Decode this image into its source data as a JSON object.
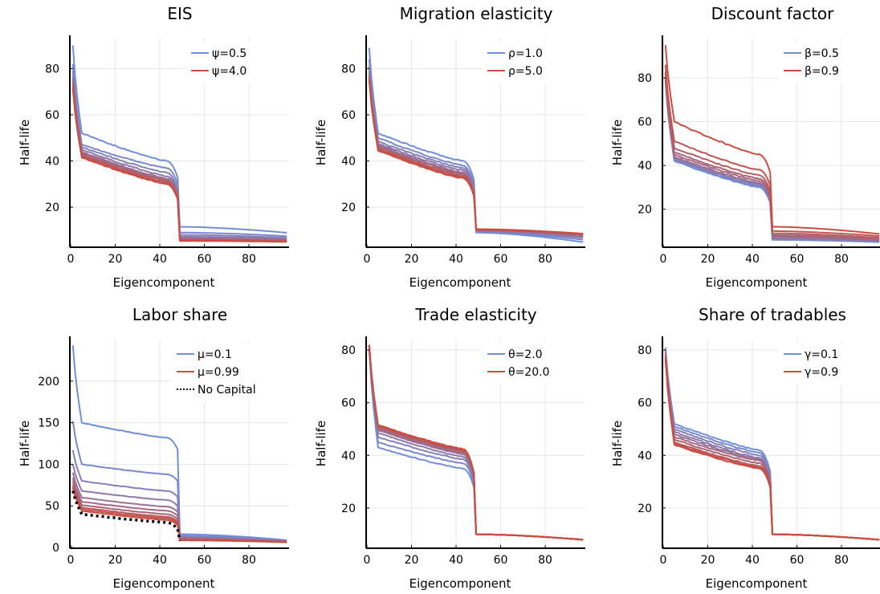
{
  "colors": {
    "low": "#6f8fdc",
    "high": "#cc4d3f",
    "nocap": "#000000",
    "grid": "#e6e6e6",
    "axis": "#000000"
  },
  "chart_data": [
    {
      "type": "line",
      "title": "EIS",
      "xlabel": "Eigencomponent",
      "ylabel": "Half-life",
      "xlim": [
        0,
        98
      ],
      "ylim": [
        3,
        93
      ],
      "xticks": [
        0,
        20,
        40,
        60,
        80
      ],
      "yticks": [
        20,
        40,
        60,
        80
      ],
      "grid": true,
      "legend_position": "top-right",
      "legend": [
        {
          "label": "ψ=0.5",
          "style": "low"
        },
        {
          "label": "ψ=4.0",
          "style": "high"
        }
      ],
      "curves": [
        {
          "start": 90,
          "kink": 52,
          "t1": 40,
          "t2": 33,
          "tail1": 11.5,
          "tail2": 9.0,
          "shape": 1.2
        },
        {
          "start": 82,
          "kink": 47,
          "t1": 37,
          "t2": 30,
          "tail1": 9.0,
          "tail2": 7.5,
          "shape": 1.2
        },
        {
          "start": 79,
          "kink": 46,
          "t1": 35,
          "t2": 28,
          "tail1": 8.0,
          "tail2": 6.8,
          "shape": 1.2
        },
        {
          "start": 77,
          "kink": 45,
          "t1": 33.5,
          "t2": 27,
          "tail1": 7.2,
          "tail2": 6.3,
          "shape": 1.2
        },
        {
          "start": 76,
          "kink": 44,
          "t1": 32.5,
          "t2": 26,
          "tail1": 6.6,
          "tail2": 6.0,
          "shape": 1.2
        },
        {
          "start": 75,
          "kink": 43.5,
          "t1": 32,
          "t2": 25.5,
          "tail1": 6.2,
          "tail2": 5.7,
          "shape": 1.2
        },
        {
          "start": 74,
          "kink": 43,
          "t1": 31.5,
          "t2": 25,
          "tail1": 6.0,
          "tail2": 5.5,
          "shape": 1.2
        },
        {
          "start": 73,
          "kink": 42.5,
          "t1": 31,
          "t2": 24.5,
          "tail1": 5.8,
          "tail2": 5.3,
          "shape": 1.2
        },
        {
          "start": 72,
          "kink": 42,
          "t1": 30.5,
          "t2": 24,
          "tail1": 5.6,
          "tail2": 5.2,
          "shape": 1.2
        },
        {
          "start": 71,
          "kink": 41.5,
          "t1": 30,
          "t2": 23.5,
          "tail1": 5.4,
          "tail2": 5.0,
          "shape": 1.2
        }
      ]
    },
    {
      "type": "line",
      "title": "Migration elasticity",
      "xlabel": "Eigencomponent",
      "ylabel": "Half-life",
      "xlim": [
        0,
        98
      ],
      "ylim": [
        3,
        93
      ],
      "xticks": [
        0,
        20,
        40,
        60,
        80
      ],
      "yticks": [
        20,
        40,
        60,
        80
      ],
      "grid": true,
      "legend_position": "top-right",
      "legend": [
        {
          "label": "ρ=1.0",
          "style": "low"
        },
        {
          "label": "ρ=5.0",
          "style": "high"
        }
      ],
      "curves": [
        {
          "start": 89,
          "kink": 52,
          "t1": 40,
          "t2": 32,
          "tail1": 9.0,
          "tail2": 5.0,
          "shape": 1.2
        },
        {
          "start": 84,
          "kink": 50,
          "t1": 38,
          "t2": 30,
          "tail1": 9.3,
          "tail2": 6.0,
          "shape": 1.2
        },
        {
          "start": 81,
          "kink": 48.5,
          "t1": 37,
          "t2": 29,
          "tail1": 9.6,
          "tail2": 6.8,
          "shape": 1.2
        },
        {
          "start": 79,
          "kink": 47.5,
          "t1": 36,
          "t2": 28,
          "tail1": 9.8,
          "tail2": 7.3,
          "shape": 1.2
        },
        {
          "start": 78,
          "kink": 47,
          "t1": 35,
          "t2": 27.5,
          "tail1": 10.0,
          "tail2": 7.6,
          "shape": 1.2
        },
        {
          "start": 77,
          "kink": 46.5,
          "t1": 34.5,
          "t2": 27,
          "tail1": 10.1,
          "tail2": 7.9,
          "shape": 1.2
        },
        {
          "start": 76.5,
          "kink": 46,
          "t1": 34,
          "t2": 26.5,
          "tail1": 10.2,
          "tail2": 8.1,
          "shape": 1.2
        },
        {
          "start": 76,
          "kink": 45.5,
          "t1": 33.5,
          "t2": 26,
          "tail1": 10.3,
          "tail2": 8.3,
          "shape": 1.2
        },
        {
          "start": 75.5,
          "kink": 45,
          "t1": 33,
          "t2": 25.5,
          "tail1": 10.4,
          "tail2": 8.5,
          "shape": 1.2
        },
        {
          "start": 75,
          "kink": 44.5,
          "t1": 32.5,
          "t2": 25,
          "tail1": 10.5,
          "tail2": 8.6,
          "shape": 1.2
        }
      ]
    },
    {
      "type": "line",
      "title": "Discount factor",
      "xlabel": "Eigencomponent",
      "ylabel": "Half-life",
      "xlim": [
        0,
        98
      ],
      "ylim": [
        3,
        98
      ],
      "xticks": [
        0,
        20,
        40,
        60,
        80
      ],
      "yticks": [
        20,
        40,
        60,
        80
      ],
      "grid": true,
      "legend_position": "top-right",
      "legend": [
        {
          "label": "β=0.5",
          "style": "low"
        },
        {
          "label": "β=0.9",
          "style": "high"
        }
      ],
      "curves": [
        {
          "start": 78,
          "kink": 42,
          "t1": 30,
          "t2": 23,
          "tail1": 6.0,
          "tail2": 5.0,
          "shape": 1.2
        },
        {
          "start": 79,
          "kink": 42.5,
          "t1": 30.5,
          "t2": 23.5,
          "tail1": 6.2,
          "tail2": 5.2,
          "shape": 1.2
        },
        {
          "start": 79.5,
          "kink": 43,
          "t1": 31,
          "t2": 24,
          "tail1": 6.5,
          "tail2": 5.4,
          "shape": 1.2
        },
        {
          "start": 80,
          "kink": 43.5,
          "t1": 31.5,
          "t2": 24.5,
          "tail1": 6.8,
          "tail2": 5.6,
          "shape": 1.2
        },
        {
          "start": 80.5,
          "kink": 44,
          "t1": 32,
          "t2": 25,
          "tail1": 7.1,
          "tail2": 5.8,
          "shape": 1.2
        },
        {
          "start": 81,
          "kink": 45,
          "t1": 33,
          "t2": 26,
          "tail1": 7.6,
          "tail2": 6.1,
          "shape": 1.2
        },
        {
          "start": 82,
          "kink": 46,
          "t1": 34,
          "t2": 27,
          "tail1": 8.2,
          "tail2": 6.5,
          "shape": 1.2
        },
        {
          "start": 83,
          "kink": 48,
          "t1": 35.5,
          "t2": 28.5,
          "tail1": 9.0,
          "tail2": 7.0,
          "shape": 1.2
        },
        {
          "start": 86,
          "kink": 51,
          "t1": 38,
          "t2": 31,
          "tail1": 10.0,
          "tail2": 7.8,
          "shape": 1.2
        },
        {
          "start": 95,
          "kink": 60,
          "t1": 45,
          "t2": 37,
          "tail1": 12.0,
          "tail2": 8.8,
          "shape": 1.2
        }
      ]
    },
    {
      "type": "line",
      "title": "Labor share",
      "xlabel": "Eigencomponent",
      "ylabel": "Half-life",
      "xlim": [
        0,
        98
      ],
      "ylim": [
        0,
        250
      ],
      "xticks": [
        0,
        20,
        40,
        60,
        80
      ],
      "yticks": [
        0,
        50,
        100,
        150,
        200
      ],
      "grid": true,
      "legend_position": "top-right",
      "legend": [
        {
          "label": "μ=0.1",
          "style": "low"
        },
        {
          "label": "μ=0.99",
          "style": "high"
        },
        {
          "label": "No Capital",
          "style": "nocap"
        }
      ],
      "curves": [
        {
          "start": 243,
          "kink": 150,
          "t1": 132,
          "t2": 118,
          "tail1": 16,
          "tail2": 9,
          "shape": 1.2
        },
        {
          "start": 152,
          "kink": 100,
          "t1": 88,
          "t2": 80,
          "tail1": 14,
          "tail2": 8.5,
          "shape": 1.2
        },
        {
          "start": 117,
          "kink": 80,
          "t1": 68,
          "t2": 61,
          "tail1": 12.5,
          "tail2": 8,
          "shape": 1.2
        },
        {
          "start": 100,
          "kink": 68,
          "t1": 57,
          "t2": 50,
          "tail1": 11.5,
          "tail2": 7.6,
          "shape": 1.2
        },
        {
          "start": 90,
          "kink": 60,
          "t1": 49,
          "t2": 43,
          "tail1": 11,
          "tail2": 7.3,
          "shape": 1.2
        },
        {
          "start": 84,
          "kink": 55,
          "t1": 44,
          "t2": 38,
          "tail1": 10.5,
          "tail2": 7.1,
          "shape": 1.2
        },
        {
          "start": 80,
          "kink": 51,
          "t1": 40,
          "t2": 34,
          "tail1": 10,
          "tail2": 6.9,
          "shape": 1.2
        },
        {
          "start": 76,
          "kink": 48,
          "t1": 37,
          "t2": 31,
          "tail1": 9.5,
          "tail2": 6.7,
          "shape": 1.2
        },
        {
          "start": 73,
          "kink": 46,
          "t1": 35,
          "t2": 29,
          "tail1": 9,
          "tail2": 6.5,
          "shape": 1.2
        },
        {
          "start": 71,
          "kink": 44,
          "t1": 33,
          "t2": 27,
          "tail1": 8.6,
          "tail2": 6.3,
          "shape": 1.2
        }
      ],
      "nocap": {
        "start": 68,
        "kink": 40,
        "t1": 30,
        "t2": 22,
        "tail1": 8,
        "tail2": 6,
        "shape": 1.2
      }
    },
    {
      "type": "line",
      "title": "Trade elasticity",
      "xlabel": "Eigencomponent",
      "ylabel": "Half-life",
      "xlim": [
        0,
        98
      ],
      "ylim": [
        5,
        84
      ],
      "xticks": [
        0,
        20,
        40,
        60,
        80
      ],
      "yticks": [
        20,
        40,
        60,
        80
      ],
      "grid": true,
      "legend_position": "top-right",
      "legend": [
        {
          "label": "θ=2.0",
          "style": "low"
        },
        {
          "label": "θ=20.0",
          "style": "high"
        }
      ],
      "curves": [
        {
          "start": 80,
          "kink": 43,
          "t1": 35,
          "t2": 28,
          "tail1": 10.0,
          "tail2": 8.0,
          "shape": 1.2
        },
        {
          "start": 81,
          "kink": 45,
          "t1": 37,
          "t2": 29.5,
          "tail1": 10.0,
          "tail2": 8.0,
          "shape": 1.2
        },
        {
          "start": 81.5,
          "kink": 47,
          "t1": 38.5,
          "t2": 30.5,
          "tail1": 10.0,
          "tail2": 8.0,
          "shape": 1.2
        },
        {
          "start": 82,
          "kink": 48.5,
          "t1": 39.5,
          "t2": 31.5,
          "tail1": 10.0,
          "tail2": 8.0,
          "shape": 1.2
        },
        {
          "start": 82,
          "kink": 49.5,
          "t1": 40.5,
          "t2": 32,
          "tail1": 10.0,
          "tail2": 8.0,
          "shape": 1.2
        },
        {
          "start": 82,
          "kink": 50,
          "t1": 41,
          "t2": 32.5,
          "tail1": 10.0,
          "tail2": 8.0,
          "shape": 1.2
        },
        {
          "start": 82,
          "kink": 50.5,
          "t1": 41.5,
          "t2": 33,
          "tail1": 10.0,
          "tail2": 8.0,
          "shape": 1.2
        },
        {
          "start": 82,
          "kink": 51,
          "t1": 42,
          "t2": 33,
          "tail1": 10.0,
          "tail2": 8.0,
          "shape": 1.2
        },
        {
          "start": 82,
          "kink": 51,
          "t1": 42,
          "t2": 33.5,
          "tail1": 10.0,
          "tail2": 8.0,
          "shape": 1.2
        },
        {
          "start": 82,
          "kink": 51.5,
          "t1": 42.5,
          "t2": 33.5,
          "tail1": 10.0,
          "tail2": 8.0,
          "shape": 1.2
        }
      ]
    },
    {
      "type": "line",
      "title": "Share of tradables",
      "xlabel": "Eigencomponent",
      "ylabel": "Half-life",
      "xlim": [
        0,
        98
      ],
      "ylim": [
        5,
        84
      ],
      "xticks": [
        0,
        20,
        40,
        60,
        80
      ],
      "yticks": [
        20,
        40,
        60,
        80
      ],
      "grid": true,
      "legend_position": "top-right",
      "legend": [
        {
          "label": "γ=0.1",
          "style": "low"
        },
        {
          "label": "γ=0.9",
          "style": "high"
        }
      ],
      "curves": [
        {
          "start": 81,
          "kink": 52,
          "t1": 42,
          "t2": 34,
          "tail1": 10.0,
          "tail2": 8.0,
          "shape": 1.2
        },
        {
          "start": 80.5,
          "kink": 51,
          "t1": 41,
          "t2": 33,
          "tail1": 10.0,
          "tail2": 8.0,
          "shape": 1.2
        },
        {
          "start": 80,
          "kink": 50,
          "t1": 40,
          "t2": 32,
          "tail1": 10.0,
          "tail2": 8.0,
          "shape": 1.2
        },
        {
          "start": 79.5,
          "kink": 49,
          "t1": 39,
          "t2": 31.5,
          "tail1": 10.0,
          "tail2": 8.0,
          "shape": 1.2
        },
        {
          "start": 79,
          "kink": 48,
          "t1": 38.5,
          "t2": 31,
          "tail1": 10.0,
          "tail2": 8.0,
          "shape": 1.2
        },
        {
          "start": 78.5,
          "kink": 47,
          "t1": 38,
          "t2": 30,
          "tail1": 10.0,
          "tail2": 8.0,
          "shape": 1.2
        },
        {
          "start": 78,
          "kink": 46,
          "t1": 37,
          "t2": 29.5,
          "tail1": 10.0,
          "tail2": 8.0,
          "shape": 1.2
        },
        {
          "start": 77.5,
          "kink": 45,
          "t1": 36,
          "t2": 29,
          "tail1": 10.0,
          "tail2": 8.0,
          "shape": 1.2
        },
        {
          "start": 77,
          "kink": 44.5,
          "t1": 35.5,
          "t2": 28.5,
          "tail1": 10.0,
          "tail2": 8.0,
          "shape": 1.2
        },
        {
          "start": 76.5,
          "kink": 44,
          "t1": 35,
          "t2": 28,
          "tail1": 10.0,
          "tail2": 8.0,
          "shape": 1.2
        }
      ]
    }
  ]
}
